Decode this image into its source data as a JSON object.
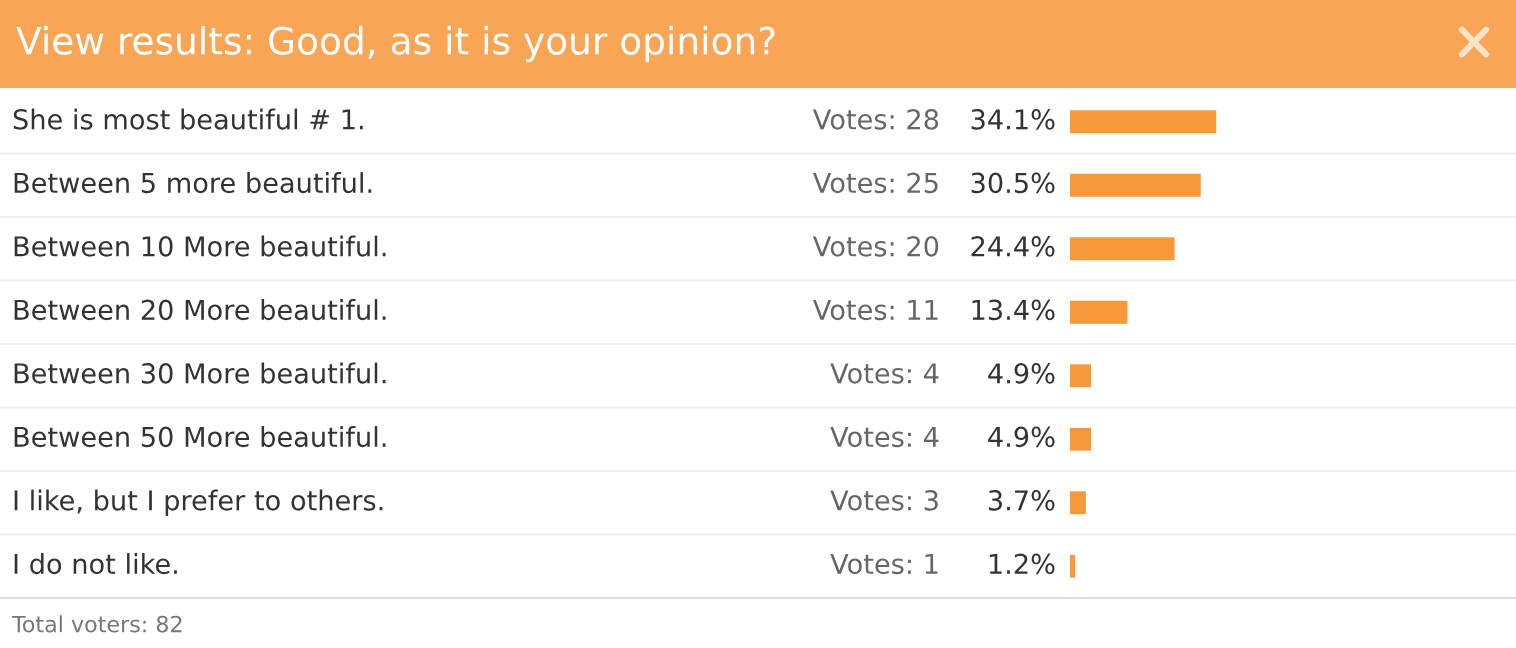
{
  "chart_data": {
    "type": "bar",
    "orientation": "horizontal",
    "title": "View results: Good, as it is your opinion?",
    "categories": [
      "She is most beautiful # 1.",
      "Between 5 more beautiful.",
      "Between 10 More beautiful.",
      "Between 20 More beautiful.",
      "Between 30 More beautiful.",
      "Between 50 More beautiful.",
      "I like, but I prefer to others.",
      "I do not like."
    ],
    "values": [
      34.1,
      30.5,
      24.4,
      13.4,
      4.9,
      4.9,
      3.7,
      1.2
    ],
    "color": "#f7993a",
    "value_labels": [
      "34.1%",
      "30.5%",
      "24.4%",
      "13.4%",
      "4.9%",
      "4.9%",
      "3.7%",
      "1.2%"
    ],
    "annotations": [
      "Votes: 28",
      "Votes: 25",
      "Votes: 20",
      "Votes: 11",
      "Votes: 4",
      "Votes: 4",
      "Votes: 3",
      "Votes: 1",
      "Total voters: 82"
    ]
  }
}
